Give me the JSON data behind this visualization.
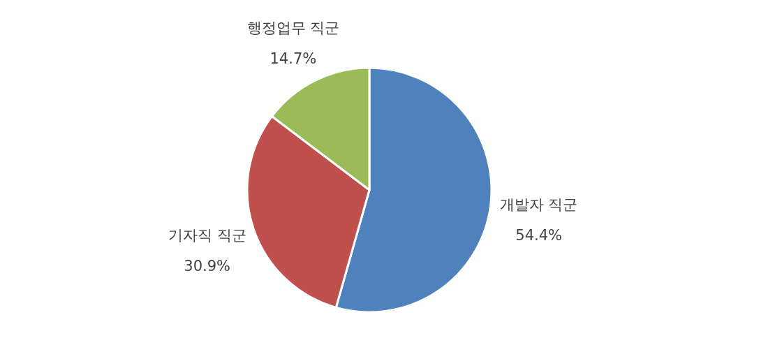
{
  "chart_data": {
    "type": "pie",
    "categories": [
      "개발자 직군",
      "기자직 직군",
      "행정업무 직군"
    ],
    "values": [
      54.4,
      30.9,
      14.7
    ],
    "value_labels": [
      "54.4%",
      "30.9%",
      "14.7%"
    ],
    "colors": [
      "#4f81bd",
      "#c0504d",
      "#9bbb59"
    ],
    "legend": false
  }
}
